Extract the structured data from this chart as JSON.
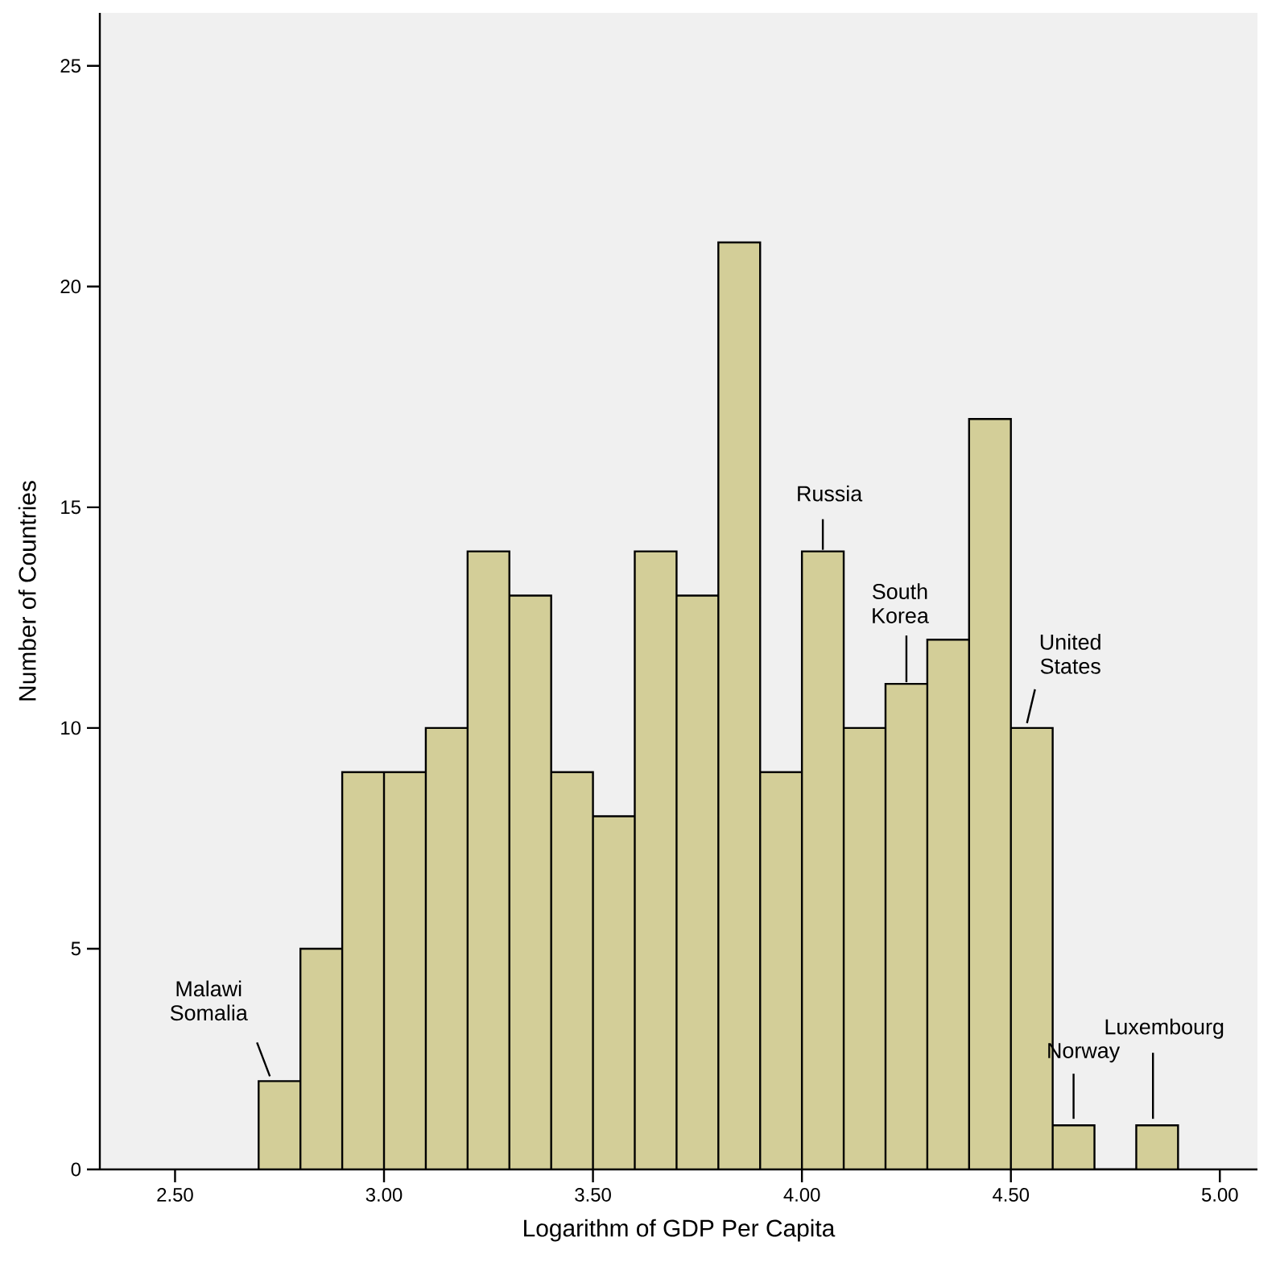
{
  "chart_data": {
    "type": "histogram",
    "xlabel": "Logarithm of GDP Per Capita",
    "ylabel": "Number of Countries",
    "bins": [
      2.7,
      2.8,
      2.9,
      3.0,
      3.1,
      3.2,
      3.3,
      3.4,
      3.5,
      3.6,
      3.7,
      3.8,
      3.9,
      4.0,
      4.1,
      4.2,
      4.3,
      4.4,
      4.5,
      4.6,
      4.7,
      4.8,
      4.9
    ],
    "values": [
      2,
      5,
      9,
      9,
      10,
      14,
      13,
      9,
      8,
      14,
      13,
      21,
      9,
      14,
      10,
      11,
      12,
      17,
      10,
      1,
      0,
      1
    ],
    "color": "#d3ce98",
    "xlim": [
      2.32,
      5.09
    ],
    "ylim": [
      0,
      26.2
    ],
    "xticks": [
      {
        "value": 2.5,
        "label": "2.50"
      },
      {
        "value": 3.0,
        "label": "3.00"
      },
      {
        "value": 3.5,
        "label": "3.50"
      },
      {
        "value": 4.0,
        "label": "4.00"
      },
      {
        "value": 4.5,
        "label": "4.50"
      },
      {
        "value": 5.0,
        "label": "5.00"
      }
    ],
    "yticks": [
      0,
      5,
      10,
      15,
      20,
      25
    ],
    "grid": false,
    "annotations": [
      {
        "text": "Malawi Somalia",
        "x": 2.75,
        "y": 2
      },
      {
        "text": "Russia",
        "x": 4.05,
        "y": 14
      },
      {
        "text": "South Korea",
        "x": 4.25,
        "y": 11
      },
      {
        "text": "United States",
        "x": 4.55,
        "y": 10
      },
      {
        "text": "Norway",
        "x": 4.65,
        "y": 1
      },
      {
        "text": "Luxembourg",
        "x": 4.84,
        "y": 1
      }
    ]
  }
}
